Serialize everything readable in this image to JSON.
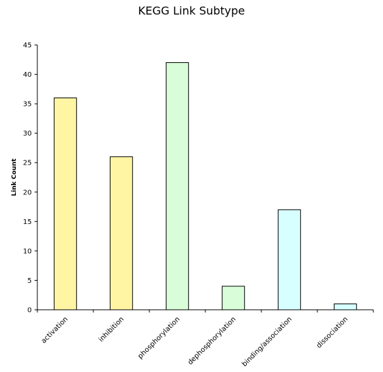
{
  "chart_data": {
    "type": "bar",
    "title": "KEGG Link Subtype",
    "ylabel": "Link Count",
    "xlabel": "",
    "categories": [
      "activation",
      "inhibition",
      "phosphorylation",
      "dephosphorylation",
      "binding/association",
      "dissociation"
    ],
    "values": [
      36,
      26,
      42,
      4,
      17,
      1
    ],
    "bar_colors": [
      "#fff5a3",
      "#fff5a3",
      "#d9fdd8",
      "#d9fdd8",
      "#d8ffff",
      "#d8ffff"
    ],
    "ylim": [
      0,
      45
    ],
    "yticks": [
      0,
      5,
      10,
      15,
      20,
      25,
      30,
      35,
      40,
      45
    ],
    "grid": false,
    "legend": "none"
  }
}
